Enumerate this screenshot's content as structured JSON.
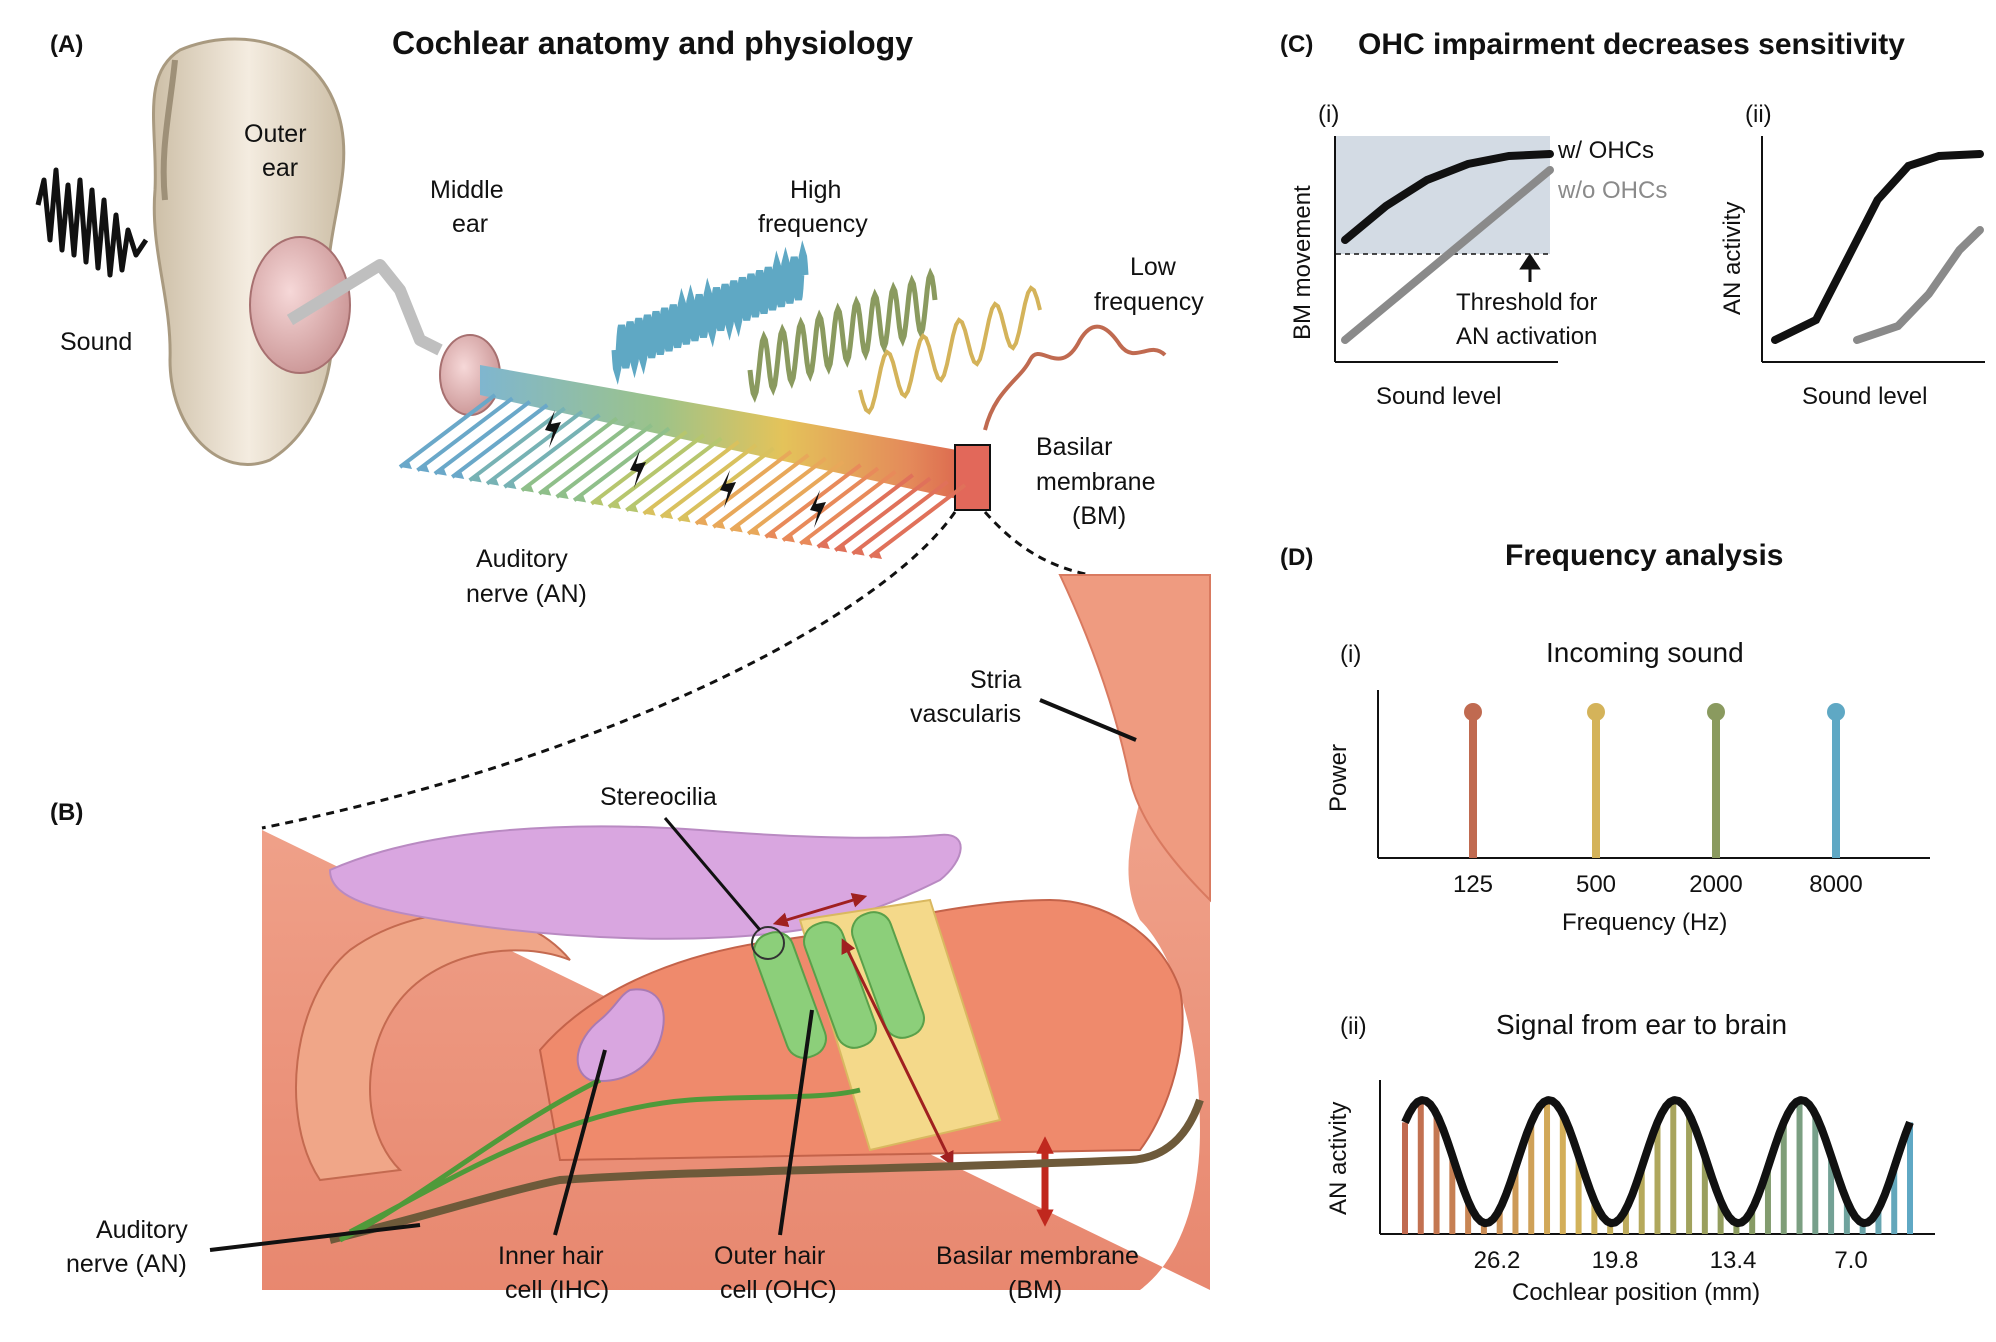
{
  "panel_a": {
    "letter": "(A)",
    "title": "Cochlear anatomy and physiology",
    "sound": "Sound",
    "outer_ear": [
      "Outer",
      "ear"
    ],
    "middle_ear": [
      "Middle",
      "ear"
    ],
    "high_freq": [
      "High",
      "frequency"
    ],
    "low_freq": [
      "Low",
      "frequency"
    ],
    "bm": [
      "Basilar",
      "membrane",
      "(BM)"
    ],
    "an": [
      "Auditory",
      "nerve (AN)"
    ]
  },
  "panel_b": {
    "letter": "(B)",
    "stria": [
      "Stria",
      "vascularis"
    ],
    "stereocilia": "Stereocilia",
    "an": [
      "Auditory",
      "nerve (AN)"
    ],
    "ihc": [
      "Inner hair",
      "cell (IHC)"
    ],
    "ohc": [
      "Outer hair",
      "cell (OHC)"
    ],
    "bm": [
      "Basilar membrane",
      "(BM)"
    ]
  },
  "panel_c": {
    "letter": "(C)",
    "title": "OHC impairment decreases sensitivity",
    "i_label": "(i)",
    "ii_label": "(ii)",
    "i_ylabel": "BM movement",
    "i_xlabel": "Sound level",
    "legend_with": "w/ OHCs",
    "legend_without": "w/o OHCs",
    "threshold": [
      "Threshold for",
      "AN activation"
    ],
    "ii_ylabel": "AN activity",
    "ii_xlabel": "Sound level"
  },
  "panel_d": {
    "letter": "(D)",
    "title": "Frequency analysis",
    "i_label": "(i)",
    "i_title": "Incoming sound",
    "ii_label": "(ii)",
    "ii_title": "Signal from ear to brain"
  },
  "colors": {
    "low": "#c06a50",
    "mid_low": "#d4b35a",
    "mid_high": "#8a9a5f",
    "high": "#5fa8c4",
    "purple": "#d9a6e0",
    "green": "#8ccf7a",
    "yellow": "#f4d98a",
    "tissue": "#e98a6c"
  },
  "chart_data": [
    {
      "type": "line",
      "ylabel": "BM movement",
      "xlabel": "Sound level",
      "series": [
        {
          "name": "w/ OHCs",
          "x": [
            0,
            0.2,
            0.4,
            0.6,
            0.8,
            1.0
          ],
          "y": [
            0.55,
            0.72,
            0.85,
            0.93,
            0.97,
            0.98
          ]
        },
        {
          "name": "w/o OHCs",
          "x": [
            0,
            1.0
          ],
          "y": [
            0.05,
            0.9
          ]
        }
      ],
      "threshold": 0.55,
      "threshold_label": "Threshold for AN activation"
    },
    {
      "type": "line",
      "ylabel": "AN activity",
      "xlabel": "Sound level",
      "series": [
        {
          "name": "w/ OHCs",
          "x": [
            0,
            0.2,
            0.35,
            0.5,
            0.65,
            0.8,
            1.0
          ],
          "y": [
            0.05,
            0.15,
            0.45,
            0.75,
            0.92,
            0.97,
            0.98
          ]
        },
        {
          "name": "w/o OHCs",
          "x": [
            0.4,
            0.6,
            0.75,
            0.9,
            1.0
          ],
          "y": [
            0.05,
            0.12,
            0.28,
            0.5,
            0.6
          ]
        }
      ]
    },
    {
      "type": "bar",
      "title": "Incoming sound",
      "ylabel": "Power",
      "xlabel": "Frequency (Hz)",
      "categories": [
        "125",
        "500",
        "2000",
        "8000"
      ],
      "values": [
        1,
        1,
        1,
        1
      ],
      "colors": [
        "#c06a50",
        "#d4b35a",
        "#8a9a5f",
        "#5fa8c4"
      ]
    },
    {
      "type": "bar",
      "title": "Signal from ear to brain",
      "ylabel": "AN activity",
      "xlabel": "Cochlear position (mm)",
      "tick_labels": [
        "26.2",
        "19.8",
        "13.4",
        "7.0"
      ],
      "peaks": 4
    }
  ]
}
